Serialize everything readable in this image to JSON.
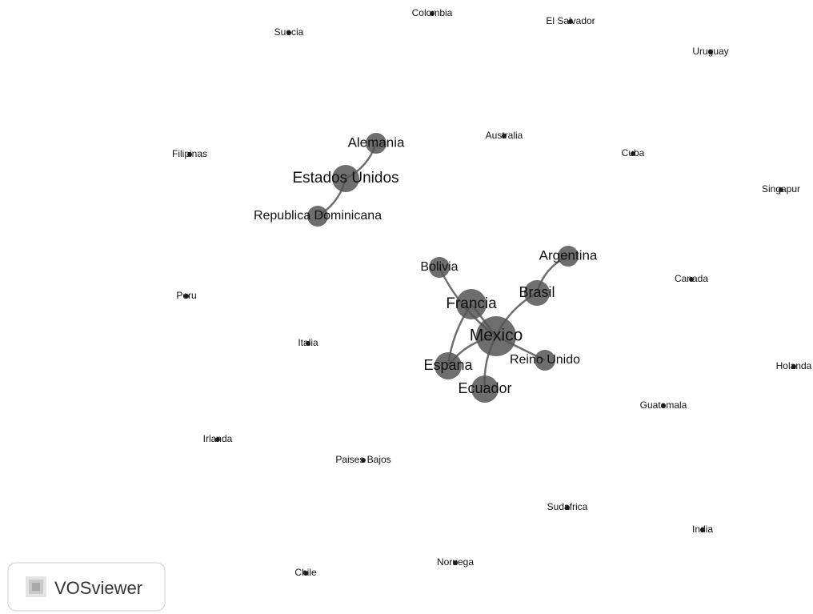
{
  "nodes": [
    {
      "label": "Colombia"
    },
    {
      "label": "El Salvador"
    },
    {
      "label": "Suecia"
    },
    {
      "label": "Uruguay"
    },
    {
      "label": "Australia"
    },
    {
      "label": "Alemania"
    },
    {
      "label": "Filipinas"
    },
    {
      "label": "Cuba"
    },
    {
      "label": "Estados Unidos"
    },
    {
      "label": "Singapur"
    },
    {
      "label": "Republica Dominicana"
    },
    {
      "label": "Argentina"
    },
    {
      "label": "Bolivia"
    },
    {
      "label": "Canada"
    },
    {
      "label": "Peru"
    },
    {
      "label": "Francia"
    },
    {
      "label": "Brasil"
    },
    {
      "label": "Mexico"
    },
    {
      "label": "Italia"
    },
    {
      "label": "Reino Unido"
    },
    {
      "label": "Espana"
    },
    {
      "label": "Holanda"
    },
    {
      "label": "Ecuador"
    },
    {
      "label": "Guatemala"
    },
    {
      "label": "Irlanda"
    },
    {
      "label": "Paises Bajos"
    },
    {
      "label": "Sudafrica"
    },
    {
      "label": "India"
    },
    {
      "label": "Noruega"
    },
    {
      "label": "Chile"
    }
  ],
  "logo": "VOSviewer"
}
